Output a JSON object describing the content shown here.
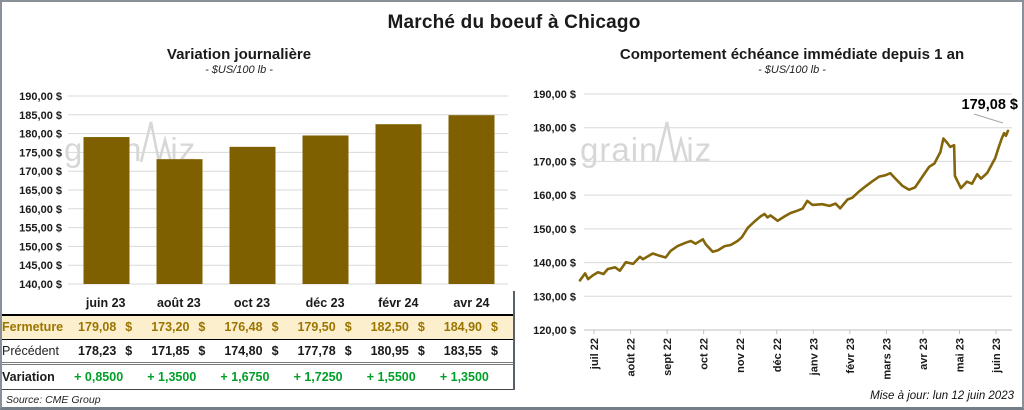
{
  "page": {
    "title": "Marché du boeuf à Chicago",
    "source": "Source: CME Group",
    "updated": "Mise à jour: lun 12 juin 2023",
    "watermark": {
      "part1": "grain",
      "part2": "iz"
    }
  },
  "colors": {
    "bar_gold": "#7F6000",
    "line_gold": "#84650A",
    "grid": "#D9D9D9",
    "axis": "#BFBFBF",
    "text": "#1A1A1A",
    "fermeture_bg": "#FBEFCD",
    "fermeture_text": "#9C7500",
    "variation_green": "#00A028",
    "annotation_leader": "#A6A6A6",
    "watermark": "#C8C8C8"
  },
  "chart_data": [
    {
      "type": "bar",
      "title": "Variation journalière",
      "subtitle": "- $US/100 lb -",
      "categories": [
        "juin 23",
        "août 23",
        "oct 23",
        "déc 23",
        "févr 24",
        "avr 24"
      ],
      "values": [
        179.08,
        173.2,
        176.48,
        179.5,
        182.5,
        184.9
      ],
      "ylim": [
        140,
        190
      ],
      "ytick_labels": [
        "190,00 $",
        "185,00 $",
        "180,00 $",
        "175,00 $",
        "170,00 $",
        "165,00 $",
        "160,00 $",
        "155,00 $",
        "150,00 $",
        "145,00 $",
        "140,00 $"
      ],
      "grid": true,
      "legend": "none"
    },
    {
      "type": "line",
      "title": "Comportement échéance immédiate depuis 1 an",
      "subtitle": "- $US/100 lb -",
      "x_labels": [
        "juil 22",
        "août 22",
        "sept 22",
        "oct 22",
        "nov 22",
        "déc 22",
        "janv 23",
        "févr 23",
        "mars 23",
        "avr 23",
        "mai 23",
        "juin 23"
      ],
      "ylim": [
        120,
        190
      ],
      "ytick_labels": [
        "190,00 $",
        "180,00 $",
        "170,00 $",
        "160,00 $",
        "150,00 $",
        "140,00 $",
        "130,00 $",
        "120,00 $"
      ],
      "annotation": "179,08 $",
      "grid": true,
      "legend": "none",
      "series": [
        {
          "name": "échéance immédiate",
          "x": [
            0,
            0.012,
            0.019,
            0.03,
            0.042,
            0.055,
            0.065,
            0.082,
            0.093,
            0.107,
            0.124,
            0.14,
            0.147,
            0.17,
            0.186,
            0.2,
            0.212,
            0.228,
            0.247,
            0.259,
            0.27,
            0.287,
            0.294,
            0.31,
            0.322,
            0.338,
            0.352,
            0.368,
            0.378,
            0.392,
            0.408,
            0.422,
            0.431,
            0.438,
            0.445,
            0.462,
            0.478,
            0.492,
            0.508,
            0.52,
            0.531,
            0.543,
            0.566,
            0.583,
            0.597,
            0.608,
            0.625,
            0.636,
            0.653,
            0.667,
            0.683,
            0.699,
            0.713,
            0.725,
            0.737,
            0.753,
            0.769,
            0.783,
            0.8,
            0.816,
            0.828,
            0.842,
            0.849,
            0.858,
            0.865,
            0.874,
            0.876,
            0.89,
            0.904,
            0.916,
            0.928,
            0.937,
            0.951,
            0.96,
            0.97,
            0.979,
            0.986,
            0.991,
            0.995,
            1.0
          ],
          "values": [
            134.7,
            136.8,
            135.1,
            136.2,
            137.1,
            136.6,
            138.1,
            138.6,
            137.6,
            140.1,
            139.6,
            141.7,
            141.0,
            142.7,
            142.0,
            141.5,
            143.5,
            144.9,
            145.9,
            146.4,
            145.6,
            146.9,
            145.4,
            143.2,
            143.6,
            144.9,
            145.2,
            146.4,
            147.5,
            150.3,
            152.2,
            153.7,
            154.4,
            153.4,
            154.0,
            152.4,
            153.7,
            154.7,
            155.4,
            156.0,
            158.3,
            157.1,
            157.3,
            156.8,
            157.5,
            156.1,
            158.7,
            159.2,
            161.2,
            162.6,
            164.1,
            165.5,
            165.9,
            166.5,
            164.9,
            162.8,
            161.6,
            162.3,
            165.5,
            168.4,
            169.4,
            172.8,
            176.8,
            175.5,
            174.3,
            174.8,
            165.7,
            162.1,
            164.0,
            163.4,
            166.2,
            164.9,
            166.5,
            168.6,
            171.0,
            174.5,
            177.0,
            178.4,
            177.6,
            179.08
          ]
        }
      ]
    }
  ],
  "table": {
    "columns": [
      "juin 23",
      "août 23",
      "oct 23",
      "déc 23",
      "févr 24",
      "avr 24"
    ],
    "unit": "$",
    "rows": [
      {
        "label": "Fermeture",
        "style": "fermeture",
        "show_unit": true,
        "values": [
          "179,08",
          "173,20",
          "176,48",
          "179,50",
          "182,50",
          "184,90"
        ]
      },
      {
        "label": "Précédent",
        "style": "precedent",
        "show_unit": true,
        "values": [
          "178,23",
          "171,85",
          "174,80",
          "177,78",
          "180,95",
          "183,55"
        ]
      },
      {
        "label": "Variation",
        "style": "variation",
        "show_unit": false,
        "values": [
          "+ 0,8500",
          "+ 1,3500",
          "+ 1,6750",
          "+ 1,7250",
          "+ 1,5500",
          "+ 1,3500"
        ]
      }
    ]
  }
}
